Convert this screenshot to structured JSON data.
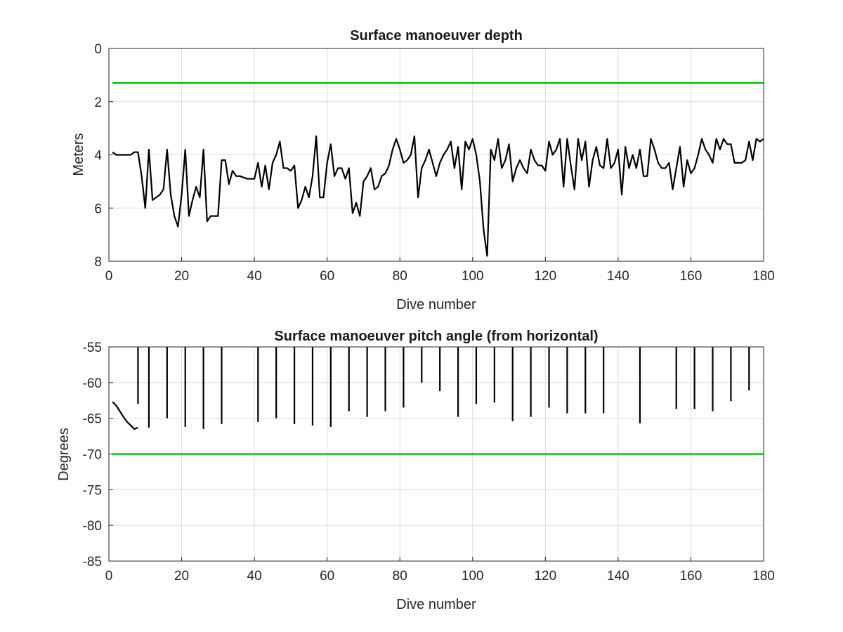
{
  "chart_data": [
    {
      "type": "line",
      "title": "Surface manoeuver depth",
      "xlabel": "Dive number",
      "ylabel": "Meters",
      "xlim": [
        0,
        180
      ],
      "ylim": [
        0,
        8
      ],
      "y_reversed": true,
      "grid": true,
      "x_ticks": [
        0,
        20,
        40,
        60,
        80,
        100,
        120,
        140,
        160,
        180
      ],
      "y_ticks": [
        0,
        2,
        4,
        6,
        8
      ],
      "series": [
        {
          "color": "#000000",
          "x": [
            1,
            2,
            3,
            4,
            5,
            6,
            7,
            8,
            9,
            10,
            11,
            12,
            13,
            14,
            15,
            16,
            17,
            18,
            19,
            20,
            21,
            22,
            23,
            24,
            25,
            26,
            27,
            28,
            29,
            30,
            31,
            32,
            33,
            34,
            35,
            36,
            37,
            38,
            39,
            40,
            41,
            42,
            43,
            44,
            45,
            46,
            47,
            48,
            49,
            50,
            51,
            52,
            53,
            54,
            55,
            56,
            57,
            58,
            59,
            60,
            61,
            62,
            63,
            64,
            65,
            66,
            67,
            68,
            69,
            70,
            71,
            72,
            73,
            74,
            75,
            76,
            77,
            78,
            79,
            80,
            81,
            82,
            83,
            84,
            85,
            86,
            87,
            88,
            89,
            90,
            91,
            92,
            93,
            94,
            95,
            96,
            97,
            98,
            99,
            100,
            101,
            102,
            103,
            104,
            105,
            106,
            107,
            108,
            109,
            110,
            111,
            112,
            113,
            114,
            115,
            116,
            117,
            118,
            119,
            120,
            121,
            122,
            123,
            124,
            125,
            126,
            127,
            128,
            129,
            130,
            131,
            132,
            133,
            134,
            135,
            136,
            137,
            138,
            139,
            140,
            141,
            142,
            143,
            144,
            145,
            146,
            147,
            148,
            149,
            150,
            151,
            152,
            153,
            154,
            155,
            156,
            157,
            158,
            159,
            160,
            161,
            162,
            163,
            164,
            165,
            166,
            167,
            168,
            169,
            170,
            171,
            172,
            173,
            174,
            175,
            176,
            177,
            178,
            179,
            180
          ],
          "y": [
            3.9,
            4.0,
            4.0,
            4.0,
            4.0,
            4.0,
            3.9,
            3.9,
            4.8,
            6.0,
            3.8,
            5.7,
            5.6,
            5.5,
            5.3,
            3.8,
            5.5,
            6.3,
            6.7,
            5.5,
            3.8,
            6.3,
            5.7,
            5.2,
            5.6,
            3.8,
            6.5,
            6.3,
            6.3,
            6.3,
            4.2,
            4.2,
            5.1,
            4.6,
            4.8,
            4.8,
            4.85,
            4.9,
            4.9,
            4.9,
            4.3,
            5.2,
            4.4,
            5.3,
            4.3,
            4.0,
            3.5,
            4.5,
            4.5,
            4.6,
            4.4,
            6.0,
            5.7,
            5.2,
            5.6,
            4.8,
            3.3,
            5.6,
            5.6,
            4.3,
            3.6,
            4.8,
            4.5,
            4.5,
            4.9,
            4.5,
            6.2,
            5.8,
            6.3,
            5.0,
            4.8,
            4.5,
            5.3,
            5.2,
            4.8,
            4.7,
            4.4,
            3.8,
            3.4,
            3.8,
            4.3,
            4.2,
            4.0,
            3.3,
            5.6,
            4.5,
            4.2,
            3.8,
            4.3,
            4.8,
            4.3,
            4.0,
            3.8,
            3.5,
            4.5,
            3.7,
            5.3,
            3.5,
            3.8,
            3.4,
            4.0,
            5.0,
            6.8,
            7.8,
            3.8,
            4.2,
            3.4,
            4.5,
            4.2,
            3.6,
            5.0,
            4.5,
            4.2,
            4.5,
            4.7,
            3.8,
            4.2,
            4.4,
            4.4,
            4.6,
            3.5,
            4.0,
            3.8,
            3.4,
            5.2,
            3.4,
            4.4,
            5.3,
            3.4,
            4.2,
            3.5,
            5.2,
            4.2,
            3.7,
            4.4,
            4.5,
            3.4,
            4.5,
            4.3,
            3.8,
            5.5,
            3.7,
            4.5,
            4.0,
            4.5,
            3.8,
            4.8,
            4.8,
            3.4,
            3.8,
            4.3,
            4.5,
            4.5,
            4.3,
            5.3,
            4.5,
            3.7,
            5.2,
            4.2,
            4.7,
            4.5,
            4.0,
            3.4,
            3.8,
            4.0,
            4.3,
            3.4,
            3.8,
            3.4,
            3.6,
            3.6,
            4.3,
            4.3,
            4.3,
            4.2,
            3.5,
            4.2,
            3.4,
            3.5,
            3.4
          ]
        },
        {
          "color": "#00cc00",
          "x": [
            1,
            180
          ],
          "y": [
            1.3,
            1.3
          ]
        }
      ]
    },
    {
      "type": "line",
      "title": "Surface manoeuver pitch angle (from horizontal)",
      "xlabel": "Dive number",
      "ylabel": "Degrees",
      "xlim": [
        0,
        180
      ],
      "ylim": [
        -85,
        -55
      ],
      "grid": true,
      "x_ticks": [
        0,
        20,
        40,
        60,
        80,
        100,
        120,
        140,
        160,
        180
      ],
      "y_ticks": [
        -55,
        -60,
        -65,
        -70,
        -75,
        -80,
        -85
      ],
      "series": [
        {
          "color": "#000000",
          "x": [
            1,
            2,
            3,
            4,
            5,
            6,
            7,
            8
          ],
          "y": [
            -62.7,
            -63.2,
            -64.0,
            -64.8,
            -65.5,
            -66.0,
            -66.5,
            -66.3
          ]
        },
        {
          "color": "#00cc00",
          "x": [
            1,
            180
          ],
          "y": [
            -70,
            -70
          ]
        }
      ],
      "spikes": {
        "color": "#000000",
        "top": -55,
        "x": [
          8,
          11,
          16,
          21,
          26,
          31,
          41,
          46,
          51,
          56,
          61,
          66,
          71,
          76,
          81,
          86,
          91,
          96,
          101,
          106,
          111,
          116,
          121,
          126,
          131,
          136,
          146,
          156,
          161,
          166,
          171,
          176
        ],
        "y": [
          -63,
          -66.3,
          -65.0,
          -66.2,
          -66.5,
          -65.8,
          -65.5,
          -65.0,
          -65.8,
          -66.0,
          -66.2,
          -64.0,
          -64.8,
          -64.0,
          -63.5,
          -60.0,
          -61.2,
          -64.8,
          -63.0,
          -62.8,
          -65.4,
          -64.8,
          -63.5,
          -64.3,
          -64.3,
          -64.3,
          -65.7,
          -63.7,
          -63.7,
          -64.0,
          -62.6,
          -61.1
        ]
      }
    }
  ]
}
